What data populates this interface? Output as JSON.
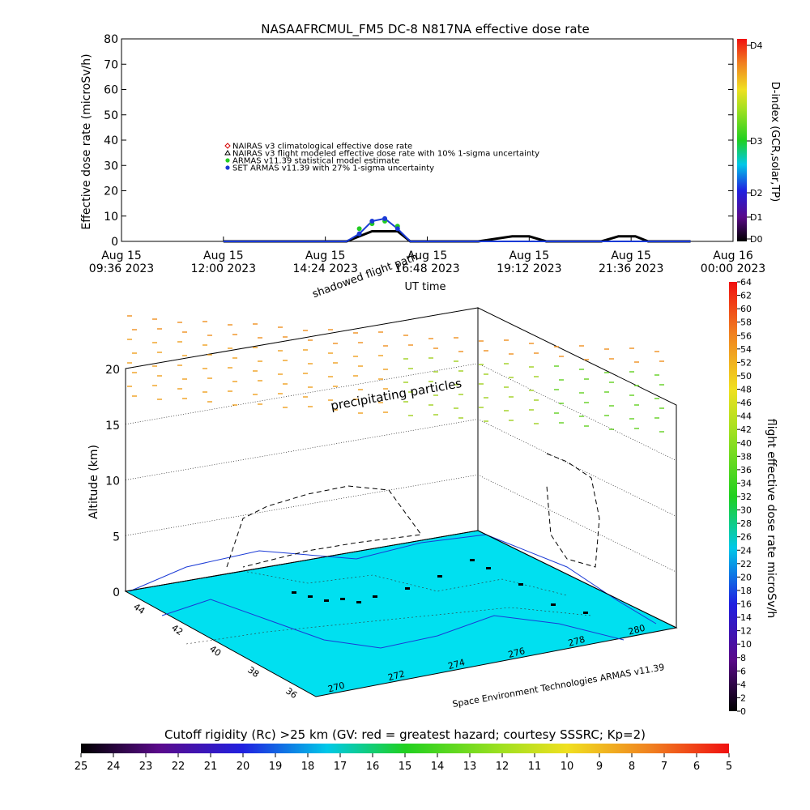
{
  "title": "NASAAFRCMUL_FM5 DC-8   N817NA effective dose rate",
  "chart_data": [
    {
      "type": "line",
      "ylabel": "Effective dose rate (microSv/h)",
      "xlabel": "UT time",
      "ylim": [
        0,
        80
      ],
      "yticks": [
        "0",
        "10",
        "20",
        "30",
        "40",
        "50",
        "60",
        "70",
        "80"
      ],
      "xticks": [
        {
          "line1": "Aug 15",
          "line2": "09:36 2023"
        },
        {
          "line1": "Aug 15",
          "line2": "12:00 2023"
        },
        {
          "line1": "Aug 15",
          "line2": "14:24 2023"
        },
        {
          "line1": "Aug 15",
          "line2": "16:48 2023"
        },
        {
          "line1": "Aug 15",
          "line2": "19:12 2023"
        },
        {
          "line1": "Aug 15",
          "line2": "21:36 2023"
        },
        {
          "line1": "Aug 16",
          "line2": "00:00 2023"
        }
      ],
      "legend": [
        {
          "label": "NAIRAS v3 climatological effective dose rate",
          "color": "#d40000",
          "marker": "diamond"
        },
        {
          "label": "NAIRAS v3 flight modeled effective dose rate with 10% 1-sigma uncertainty",
          "color": "#000000",
          "marker": "triangle"
        },
        {
          "label": "ARMAS v11.39 statistical model estimate",
          "color": "#22cc22",
          "marker": "star"
        },
        {
          "label": "SET ARMAS v11.39 with 27% 1-sigma uncertainty",
          "color": "#1a3ad6",
          "marker": "circle"
        }
      ],
      "series_hours_utc_aug15": [
        12.0,
        14.9,
        15.2,
        15.5,
        15.8,
        16.1,
        16.4,
        18.0,
        18.8,
        19.2,
        19.6,
        20.9,
        21.3,
        21.7,
        22.0,
        23.0
      ],
      "nairas_flight_values": [
        0,
        0,
        2,
        4,
        4,
        4,
        0,
        0,
        2,
        2,
        0,
        0,
        2,
        2,
        0,
        0
      ],
      "armas_model_values": [
        0,
        0,
        5,
        7,
        8,
        6,
        0,
        0,
        0,
        0,
        0,
        0,
        0,
        0,
        0,
        0
      ],
      "set_armas_values": [
        0,
        0,
        3,
        8,
        9,
        5,
        0,
        0,
        0,
        0,
        0,
        0,
        0,
        0,
        0,
        0
      ],
      "right_axis": {
        "label": "D-index (GCR,solar,TP)",
        "ticks": [
          "D0",
          "D1",
          "D2",
          "D3",
          "D4"
        ]
      }
    },
    {
      "type": "scatter",
      "zlabel": "Altitude (km)",
      "zticks": [
        "0",
        "5",
        "10",
        "15",
        "20"
      ],
      "lat_ticks": [
        "44",
        "42",
        "40",
        "38",
        "36"
      ],
      "lon_ticks": [
        "270",
        "272",
        "274",
        "276",
        "278",
        "280"
      ],
      "annotations": [
        "shadowed flight path",
        "precipitating particles"
      ],
      "credit": "Space Environment Technologies ARMAS v11.39"
    }
  ],
  "colorbar_right": {
    "label": "flight effective dose rate microSv/h",
    "ticks": [
      "0",
      "2",
      "4",
      "6",
      "8",
      "10",
      "12",
      "14",
      "16",
      "18",
      "20",
      "22",
      "24",
      "26",
      "28",
      "30",
      "32",
      "34",
      "36",
      "38",
      "40",
      "42",
      "44",
      "46",
      "48",
      "50",
      "52",
      "54",
      "56",
      "58",
      "60",
      "62",
      "64"
    ]
  },
  "colorbar_bottom": {
    "label": "Cutoff rigidity (Rc) >25 km (GV: red = greatest hazard; courtesy SSSRC; Kp=2)",
    "ticks": [
      "25",
      "24",
      "23",
      "22",
      "21",
      "20",
      "19",
      "18",
      "17",
      "16",
      "15",
      "14",
      "13",
      "12",
      "11",
      "10",
      "9",
      "8",
      "7",
      "6",
      "5"
    ]
  }
}
